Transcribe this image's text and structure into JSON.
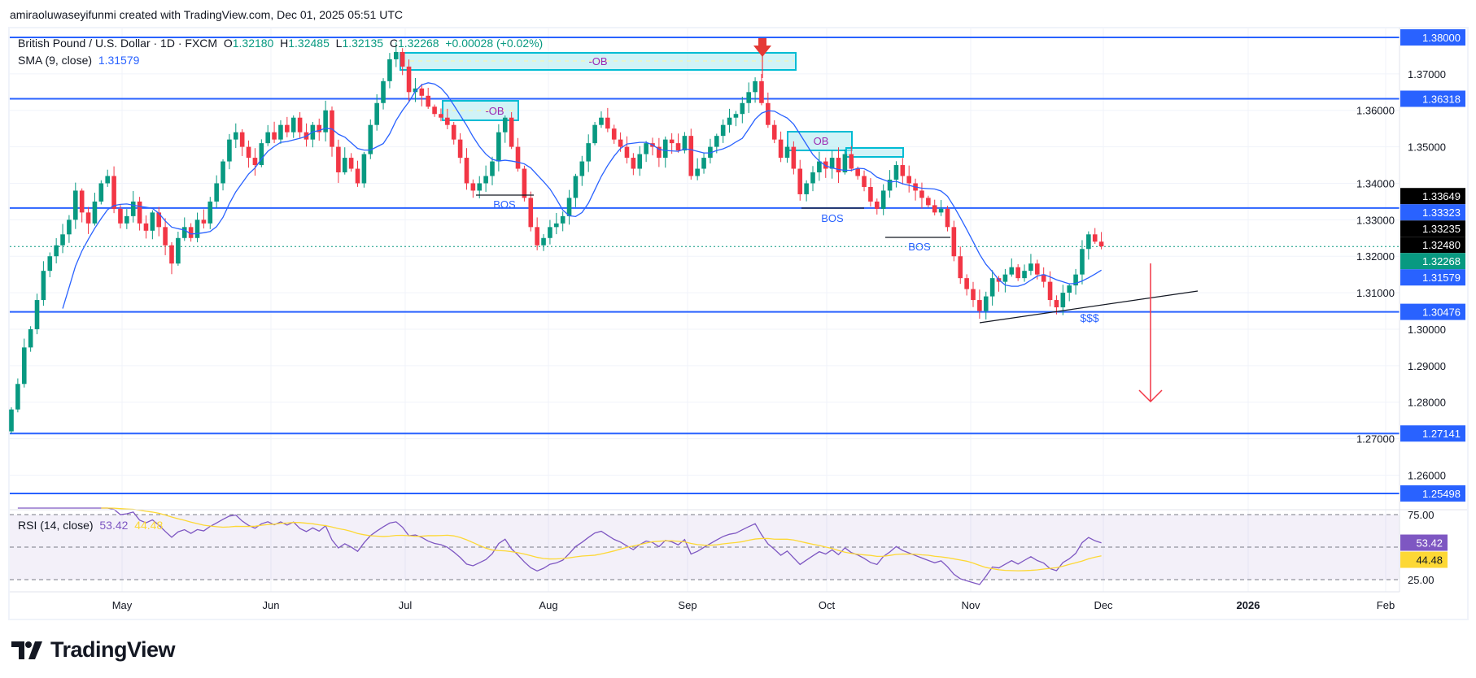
{
  "credit": "amiraoluwaseyifunmi created with TradingView.com, Dec 01, 2025 05:51 UTC",
  "symbol": {
    "title": "British Pound / U.S. Dollar · 1D · FXCM",
    "o_label": "O",
    "open": "1.32180",
    "h_label": "H",
    "high": "1.32485",
    "l_label": "L",
    "low": "1.32135",
    "c_label": "C",
    "close": "1.32268",
    "change": "+0.00028 (+0.02%)"
  },
  "sma": {
    "label": "SMA (9, close)",
    "value": "1.31579",
    "period": 9,
    "color": "#2962ff"
  },
  "rsi": {
    "label": "RSI (14, close)",
    "value": "53.42",
    "ma_value": "44.48",
    "period": 14,
    "ma_period": 14,
    "color": "#7e57c2",
    "ma_color": "#fdd835",
    "levels": [
      75,
      50,
      25
    ],
    "ticks": [
      "75.00",
      "25.00"
    ]
  },
  "colors": {
    "up": "#089981",
    "down": "#f23645",
    "level_line": "#2962ff",
    "ob_fill": "#b2ebf2",
    "ob_border": "#00bcd4",
    "annotation_red": "#f23645",
    "bos_text": "#2962ff",
    "ob_text": "#9c27b0"
  },
  "chart_data": {
    "type": "candlestick",
    "first_open": 1.272,
    "closes": [
      1.278,
      1.285,
      1.295,
      1.3,
      1.308,
      1.316,
      1.32,
      1.323,
      1.326,
      1.33,
      1.338,
      1.332,
      1.329,
      1.335,
      1.34,
      1.342,
      1.333,
      1.329,
      1.331,
      1.335,
      1.329,
      1.327,
      1.332,
      1.328,
      1.323,
      1.318,
      1.325,
      1.328,
      1.325,
      1.33,
      1.329,
      1.335,
      1.34,
      1.346,
      1.352,
      1.354,
      1.35,
      1.347,
      1.345,
      1.351,
      1.354,
      1.352,
      1.356,
      1.354,
      1.358,
      1.354,
      1.352,
      1.356,
      1.354,
      1.36,
      1.35,
      1.343,
      1.347,
      1.344,
      1.34,
      1.348,
      1.356,
      1.362,
      1.368,
      1.374,
      1.376,
      1.372,
      1.365,
      1.366,
      1.364,
      1.361,
      1.359,
      1.358,
      1.356,
      1.352,
      1.347,
      1.34,
      1.338,
      1.34,
      1.342,
      1.346,
      1.354,
      1.358,
      1.35,
      1.344,
      1.336,
      1.328,
      1.323,
      1.325,
      1.328,
      1.329,
      1.331,
      1.336,
      1.342,
      1.346,
      1.351,
      1.356,
      1.358,
      1.355,
      1.352,
      1.35,
      1.347,
      1.344,
      1.348,
      1.351,
      1.35,
      1.347,
      1.352,
      1.351,
      1.349,
      1.353,
      1.342,
      1.344,
      1.347,
      1.35,
      1.353,
      1.356,
      1.358,
      1.359,
      1.362,
      1.365,
      1.368,
      1.362,
      1.356,
      1.352,
      1.347,
      1.35,
      1.344,
      1.337,
      1.34,
      1.343,
      1.346,
      1.344,
      1.347,
      1.343,
      1.348,
      1.344,
      1.342,
      1.339,
      1.335,
      1.333,
      1.338,
      1.341,
      1.345,
      1.342,
      1.34,
      1.338,
      1.336,
      1.334,
      1.332,
      1.333,
      1.328,
      1.32,
      1.314,
      1.311,
      1.308,
      1.305,
      1.309,
      1.314,
      1.313,
      1.315,
      1.317,
      1.314,
      1.316,
      1.318,
      1.315,
      1.313,
      1.308,
      1.306,
      1.31,
      1.312,
      1.315,
      1.322,
      1.326,
      1.324,
      1.3227
    ],
    "ylim": [
      1.2465,
      1.3825
    ],
    "y_ticks": [
      "1.37000",
      "1.36000",
      "1.35000",
      "1.34000",
      "1.33000",
      "1.32000",
      "1.31000",
      "1.30000",
      "1.29000",
      "1.28000",
      "1.27000",
      "1.26000"
    ],
    "x_ticks": [
      "May",
      "Jun",
      "Jul",
      "Aug",
      "Sep",
      "Oct",
      "Nov",
      "Dec",
      "2026",
      "Feb"
    ],
    "x_ticks_bold": [
      "2026"
    ],
    "levels": [
      1.38,
      1.36318,
      1.33323,
      1.30476,
      1.27141,
      1.25498
    ],
    "last_price": 1.32268,
    "price_labels": [
      {
        "text": "1.38000",
        "price": 1.38,
        "bg": "#2962ff"
      },
      {
        "text": "1.36318",
        "price": 1.36318,
        "bg": "#2962ff"
      },
      {
        "text": "1.33649",
        "price": 1.33649,
        "bg": "#000000"
      },
      {
        "text": "1.33323",
        "price": 1.33323,
        "bg": "#2962ff"
      },
      {
        "text": "1.33235",
        "price": 1.33235,
        "bg": "#000000"
      },
      {
        "text": "1.32480",
        "price": 1.3248,
        "bg": "#000000"
      },
      {
        "text": "1.32268",
        "price": 1.32268,
        "bg": "#089981"
      },
      {
        "text": "1.31579",
        "price": 1.31579,
        "bg": "#2962ff"
      },
      {
        "text": "1.30476",
        "price": 1.30476,
        "bg": "#2962ff"
      },
      {
        "text": "1.27141",
        "price": 1.27141,
        "bg": "#2962ff"
      },
      {
        "text": "1.25498",
        "price": 1.25498,
        "bg": "#2962ff"
      }
    ]
  },
  "annotations": {
    "ob_labels": [
      "-OB",
      "-OB",
      "OB"
    ],
    "bos_labels": [
      "BOS",
      "BOS",
      "BOS"
    ],
    "liquidity_label": "$$$"
  },
  "logo": {
    "text": "TradingView"
  }
}
